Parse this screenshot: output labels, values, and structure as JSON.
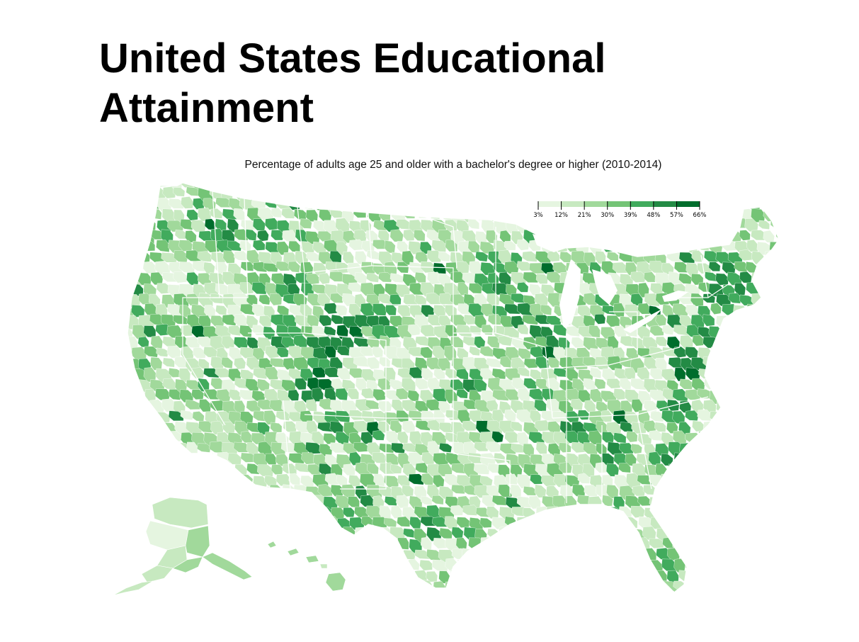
{
  "title": "United States Educational Attainment",
  "subtitle": "Percentage of adults age 25 and older with a bachelor's degree or higher (2010-2014)",
  "colors": {
    "palette": [
      "#e5f5e0",
      "#c7e9c0",
      "#a1d99b",
      "#74c476",
      "#41ab5d",
      "#238b45",
      "#006d2c"
    ],
    "background": "#ffffff",
    "borders": "#ffffff"
  },
  "legend": {
    "thresholds": [
      3,
      12,
      21,
      30,
      39,
      48,
      57,
      66
    ],
    "tick_labels": [
      "3%",
      "12%",
      "21%",
      "30%",
      "39%",
      "48%",
      "57%",
      "66%"
    ],
    "placement": "top-right"
  },
  "map_data": {
    "type": "choropleth",
    "geography": "US counties",
    "measure": "percent bachelor's degree or higher",
    "range": [
      3,
      66
    ],
    "regions": [
      "contiguous-us",
      "alaska",
      "hawaii"
    ]
  }
}
